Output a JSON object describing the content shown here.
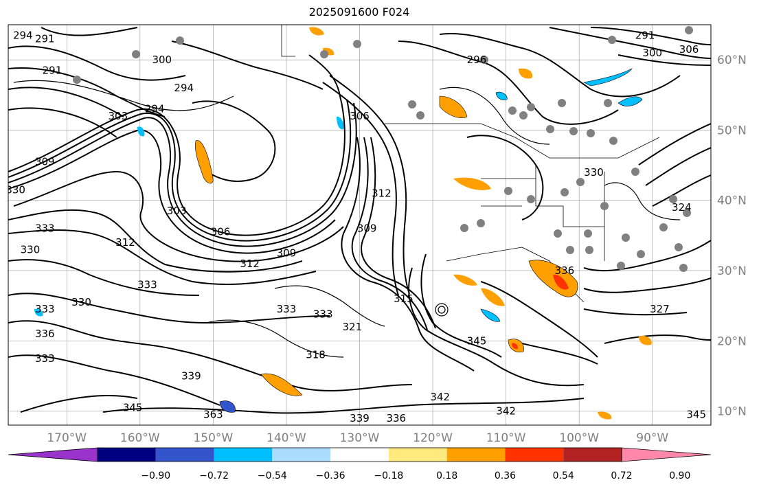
{
  "title": "2025091600 F024",
  "map": {
    "lon_range": [
      -178,
      -82
    ],
    "lat_range": [
      8,
      65
    ],
    "lon_ticks": [
      {
        "value": -170,
        "label": "170°W"
      },
      {
        "value": -160,
        "label": "160°W"
      },
      {
        "value": -150,
        "label": "150°W"
      },
      {
        "value": -140,
        "label": "140°W"
      },
      {
        "value": -130,
        "label": "130°W"
      },
      {
        "value": -120,
        "label": "120°W"
      },
      {
        "value": -110,
        "label": "110°W"
      },
      {
        "value": -100,
        "label": "100°W"
      },
      {
        "value": -90,
        "label": "90°W"
      }
    ],
    "lat_ticks": [
      {
        "value": 60,
        "label": "60°N"
      },
      {
        "value": 50,
        "label": "50°N"
      },
      {
        "value": 40,
        "label": "40°N"
      },
      {
        "value": 30,
        "label": "30°N"
      },
      {
        "value": 20,
        "label": "20°N"
      },
      {
        "value": 10,
        "label": "10°N"
      }
    ],
    "contour_labels": [
      {
        "text": "294",
        "lon": -176,
        "lat": 63.5
      },
      {
        "text": "291",
        "lon": -173,
        "lat": 63
      },
      {
        "text": "291",
        "lon": -172,
        "lat": 58.5
      },
      {
        "text": "300",
        "lon": -157,
        "lat": 60
      },
      {
        "text": "294",
        "lon": -154,
        "lat": 56
      },
      {
        "text": "303",
        "lon": -163,
        "lat": 52
      },
      {
        "text": "294",
        "lon": -158,
        "lat": 53
      },
      {
        "text": "309",
        "lon": -173,
        "lat": 45.5
      },
      {
        "text": "330",
        "lon": -177,
        "lat": 41.5
      },
      {
        "text": "303",
        "lon": -155,
        "lat": 38.5
      },
      {
        "text": "306",
        "lon": -149,
        "lat": 35.5
      },
      {
        "text": "333",
        "lon": -173,
        "lat": 36
      },
      {
        "text": "312",
        "lon": -162,
        "lat": 34
      },
      {
        "text": "330",
        "lon": -175,
        "lat": 33
      },
      {
        "text": "333",
        "lon": -159,
        "lat": 28
      },
      {
        "text": "309",
        "lon": -140,
        "lat": 32.5
      },
      {
        "text": "312",
        "lon": -145,
        "lat": 31
      },
      {
        "text": "330",
        "lon": -168,
        "lat": 25.5
      },
      {
        "text": "333",
        "lon": -173,
        "lat": 24.5
      },
      {
        "text": "333",
        "lon": -140,
        "lat": 24.5
      },
      {
        "text": "333",
        "lon": -135,
        "lat": 23.8
      },
      {
        "text": "321",
        "lon": -131,
        "lat": 22
      },
      {
        "text": "336",
        "lon": -173,
        "lat": 21
      },
      {
        "text": "318",
        "lon": -136,
        "lat": 18
      },
      {
        "text": "333",
        "lon": -173,
        "lat": 17.5
      },
      {
        "text": "339",
        "lon": -153,
        "lat": 15
      },
      {
        "text": "345",
        "lon": -161,
        "lat": 10.5
      },
      {
        "text": "363",
        "lon": -150,
        "lat": 9.5
      },
      {
        "text": "339",
        "lon": -130,
        "lat": 9
      },
      {
        "text": "336",
        "lon": -125,
        "lat": 9
      },
      {
        "text": "342",
        "lon": -119,
        "lat": 12
      },
      {
        "text": "342",
        "lon": -110,
        "lat": 10
      },
      {
        "text": "345",
        "lon": -114,
        "lat": 20
      },
      {
        "text": "315",
        "lon": -124,
        "lat": 26
      },
      {
        "text": "309",
        "lon": -129,
        "lat": 36
      },
      {
        "text": "312",
        "lon": -127,
        "lat": 41
      },
      {
        "text": "306",
        "lon": -130,
        "lat": 52
      },
      {
        "text": "296",
        "lon": -114,
        "lat": 60
      },
      {
        "text": "330",
        "lon": -98,
        "lat": 44
      },
      {
        "text": "336",
        "lon": -102,
        "lat": 30
      },
      {
        "text": "327",
        "lon": -89,
        "lat": 24.5
      },
      {
        "text": "324",
        "lon": -86,
        "lat": 39
      },
      {
        "text": "291",
        "lon": -91,
        "lat": 63.5
      },
      {
        "text": "300",
        "lon": -90,
        "lat": 61
      },
      {
        "text": "306",
        "lon": -85,
        "lat": 61.5
      },
      {
        "text": "345",
        "lon": -84,
        "lat": 9.5
      }
    ]
  },
  "colorbar": {
    "colors": [
      "#9933cc",
      "#000080",
      "#3355cc",
      "#00bfff",
      "#aaddff",
      "#ffffff",
      "#ffea80",
      "#ffa000",
      "#ff3300",
      "#b22222",
      "#ff88aa"
    ],
    "tick_labels": [
      "−0.90",
      "−0.72",
      "−0.54",
      "−0.36",
      "−0.18",
      "0.18",
      "0.36",
      "0.54",
      "0.72",
      "0.90"
    ],
    "tick_values": [
      -0.9,
      -0.72,
      -0.54,
      -0.36,
      -0.18,
      0.18,
      0.36,
      0.54,
      0.72,
      0.9
    ]
  }
}
